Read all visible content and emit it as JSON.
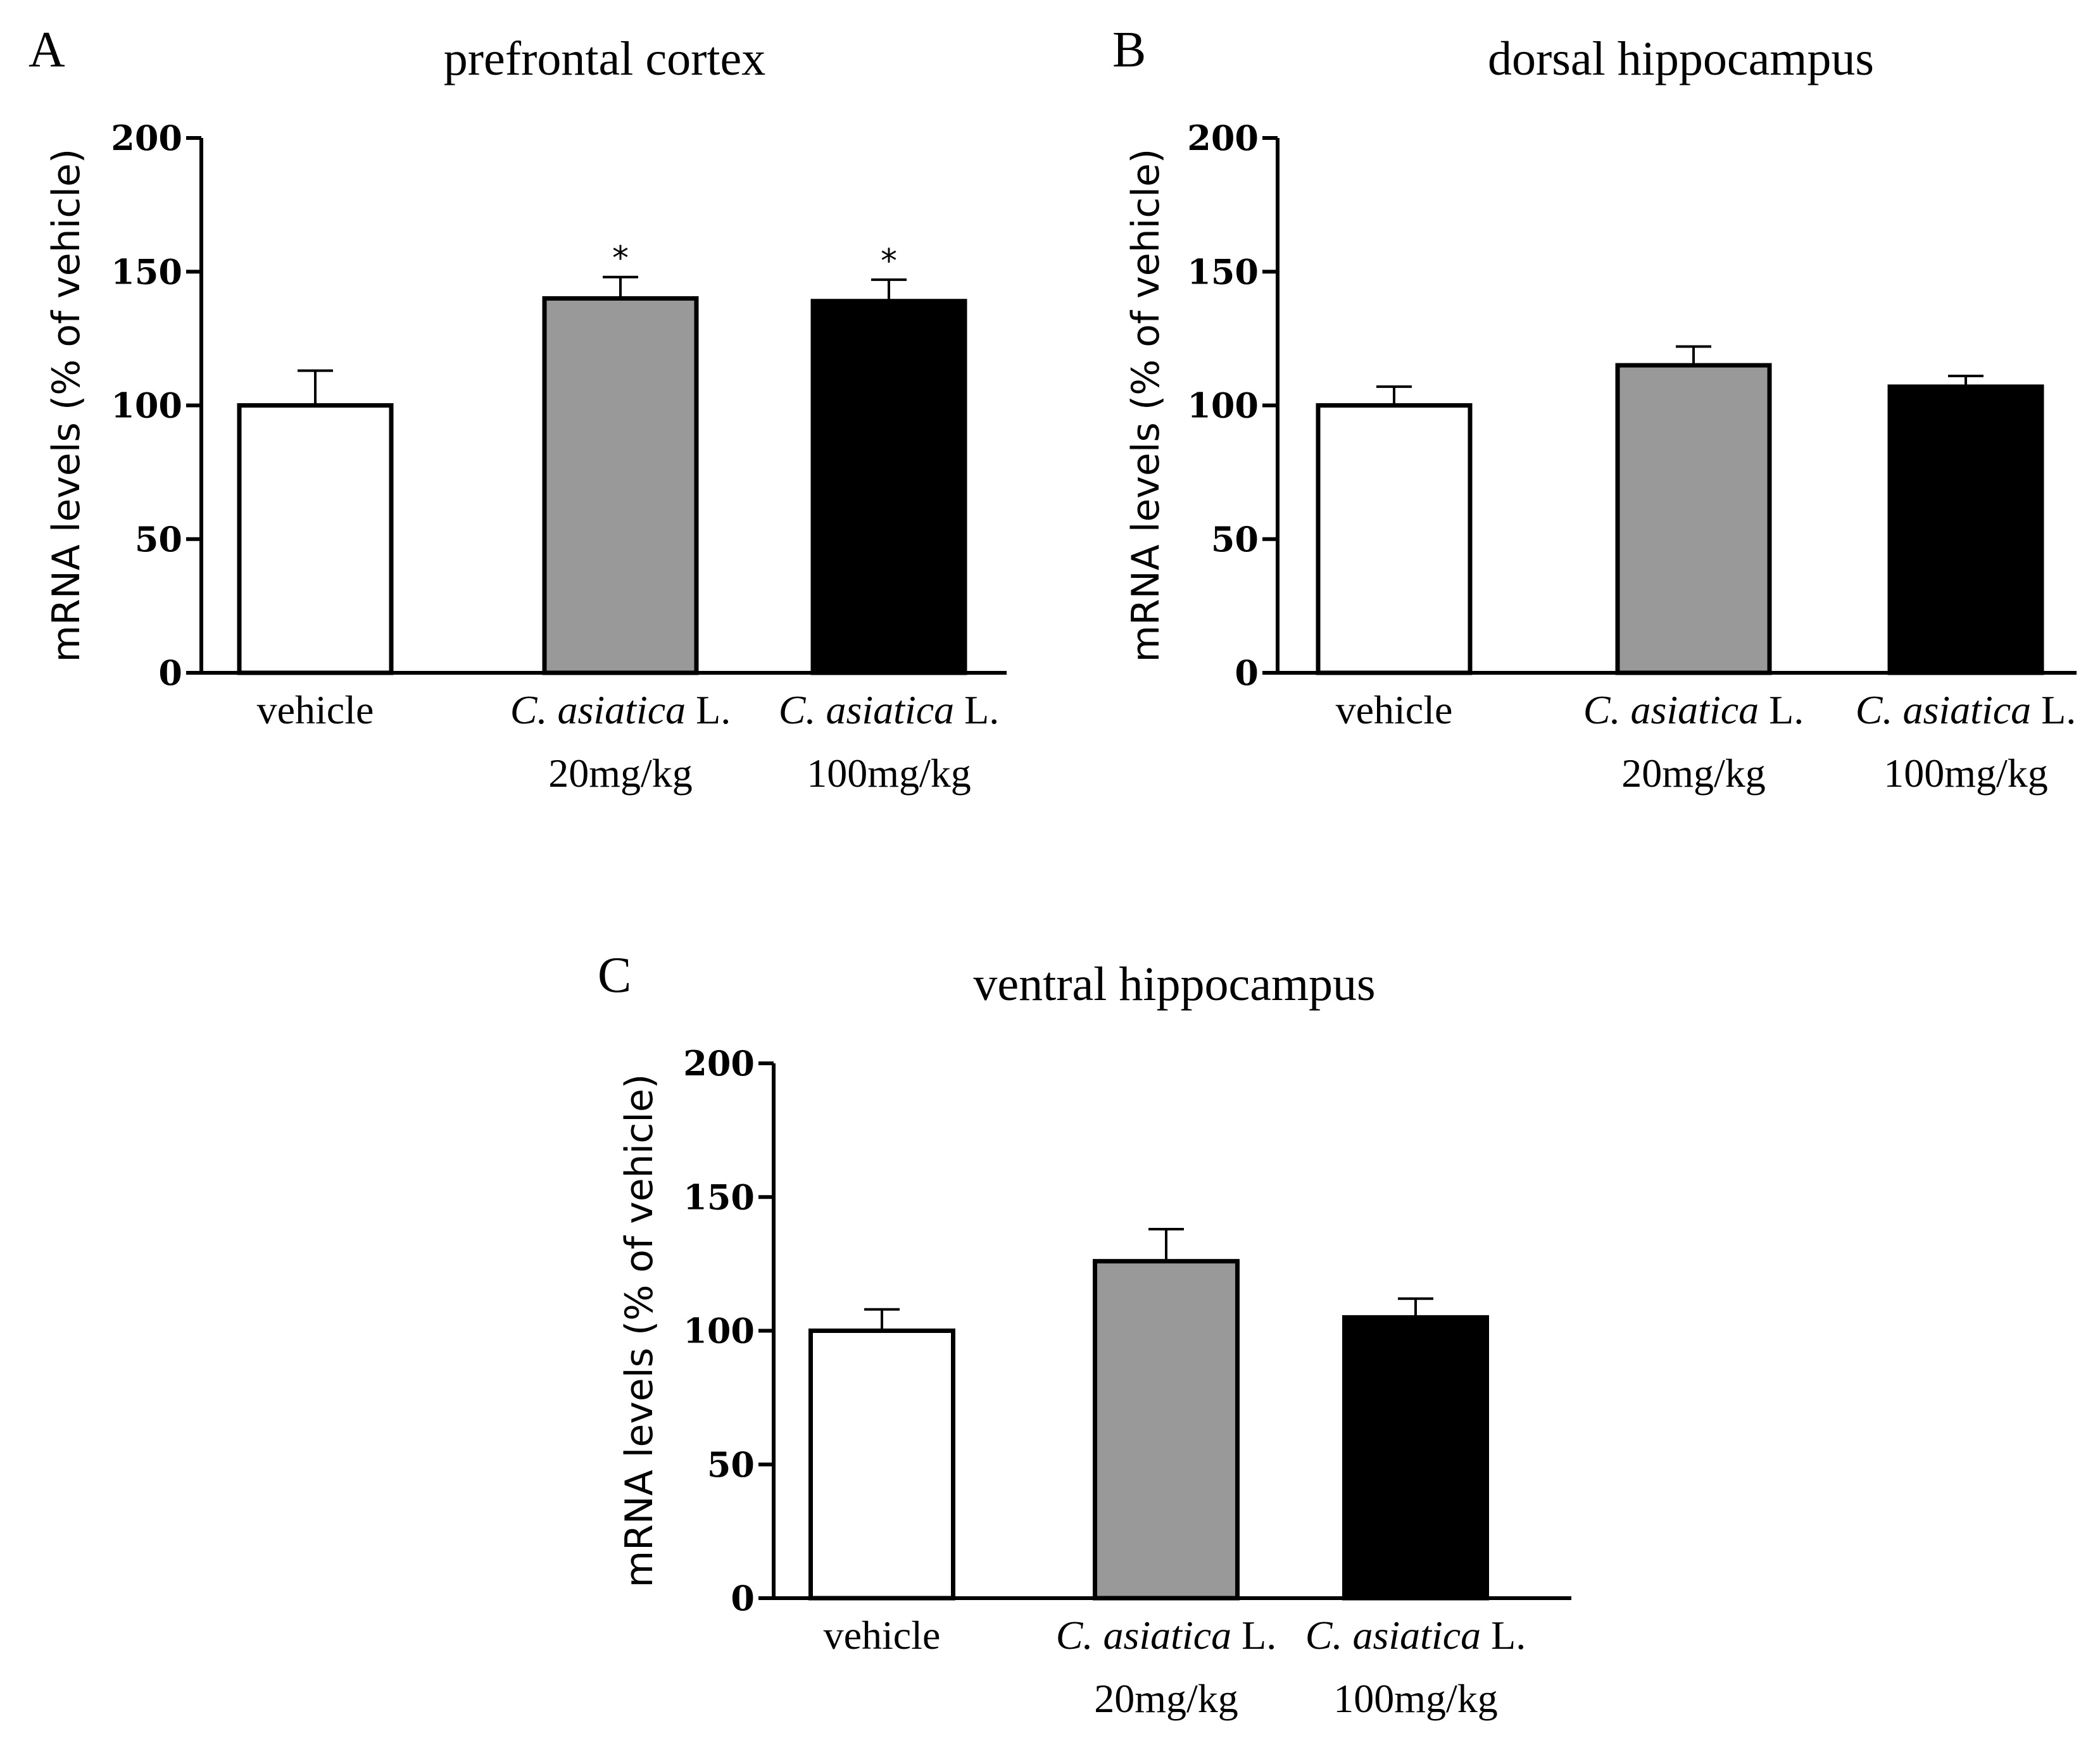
{
  "chart_data": [
    {
      "type": "bar",
      "panel": "A",
      "title": "prefrontal cortex",
      "ylabel": "mRNA levels (% of vehicle)",
      "ylim": [
        0,
        200
      ],
      "yticks": [
        "0",
        "50",
        "100",
        "150",
        "200"
      ],
      "categories": [
        {
          "line1_italic": "",
          "line1_plain": "vehicle",
          "line2": ""
        },
        {
          "line1_italic": "C. asiatica",
          "line1_plain": " L.",
          "line2": "20mg/kg"
        },
        {
          "line1_italic": "C. asiatica",
          "line1_plain": " L.",
          "line2": "100mg/kg"
        }
      ],
      "values": [
        100,
        140,
        139
      ],
      "errors": [
        13,
        8,
        8
      ],
      "fills": [
        "#ffffff",
        "#999999",
        "#000000"
      ],
      "significance": [
        "",
        "*",
        "*"
      ]
    },
    {
      "type": "bar",
      "panel": "B",
      "title": "dorsal hippocampus",
      "ylabel": "mRNA levels (% of vehicle)",
      "ylim": [
        0,
        200
      ],
      "yticks": [
        "0",
        "50",
        "100",
        "150",
        "200"
      ],
      "categories": [
        {
          "line1_italic": "",
          "line1_plain": "vehicle",
          "line2": ""
        },
        {
          "line1_italic": "C. asiatica",
          "line1_plain": " L.",
          "line2": "20mg/kg"
        },
        {
          "line1_italic": "C. asiatica",
          "line1_plain": " L.",
          "line2": "100mg/kg"
        }
      ],
      "values": [
        100,
        115,
        107
      ],
      "errors": [
        7,
        7,
        4
      ],
      "fills": [
        "#ffffff",
        "#999999",
        "#000000"
      ],
      "significance": [
        "",
        "",
        ""
      ]
    },
    {
      "type": "bar",
      "panel": "C",
      "title": "ventral hippocampus",
      "ylabel": "mRNA levels (% of vehicle)",
      "ylim": [
        0,
        200
      ],
      "yticks": [
        "0",
        "50",
        "100",
        "150",
        "200"
      ],
      "categories": [
        {
          "line1_italic": "",
          "line1_plain": "vehicle",
          "line2": ""
        },
        {
          "line1_italic": "C. asiatica",
          "line1_plain": " L.",
          "line2": "20mg/kg"
        },
        {
          "line1_italic": "C. asiatica",
          "line1_plain": " L.",
          "line2": "100mg/kg"
        }
      ],
      "values": [
        100,
        126,
        105
      ],
      "errors": [
        8,
        12,
        7
      ],
      "fills": [
        "#ffffff",
        "#999999",
        "#000000"
      ],
      "significance": [
        "",
        "",
        ""
      ]
    }
  ]
}
